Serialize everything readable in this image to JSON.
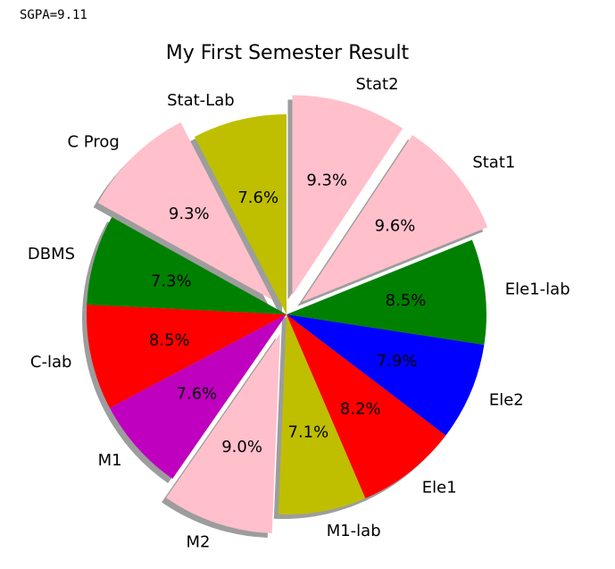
{
  "output_text": "SGPA=9.11",
  "chart_data": {
    "type": "pie",
    "title": "My First Semester Result",
    "categories": [
      "Stat-Lab",
      "C Prog",
      "DBMS",
      "C-lab",
      "M1",
      "M2",
      "M1-lab",
      "Ele1",
      "Ele2",
      "Ele1-lab",
      "Stat1",
      "Stat2"
    ],
    "values": [
      7.6,
      9.3,
      7.3,
      8.5,
      7.6,
      9.0,
      7.1,
      8.2,
      7.9,
      8.5,
      9.6,
      9.3
    ],
    "labels_pct": [
      "7.6%",
      "9.3%",
      "7.3%",
      "8.5%",
      "7.6%",
      "9.0%",
      "7.1%",
      "8.2%",
      "7.9%",
      "8.5%",
      "9.6%",
      "9.3%"
    ],
    "colors": [
      "#bfbf00",
      "#ffc0cb",
      "#008000",
      "#ff0000",
      "#bf00bf",
      "#ffc0cb",
      "#bfbf00",
      "#ff0000",
      "#0000ff",
      "#008000",
      "#ffc0cb",
      "#ffc0cb"
    ],
    "explode": [
      0,
      0.1,
      0,
      0,
      0,
      0.1,
      0,
      0,
      0,
      0,
      0.1,
      0.1
    ],
    "start_angle_deg": 90,
    "counterclock": true,
    "shadow": true,
    "legend": "none"
  }
}
